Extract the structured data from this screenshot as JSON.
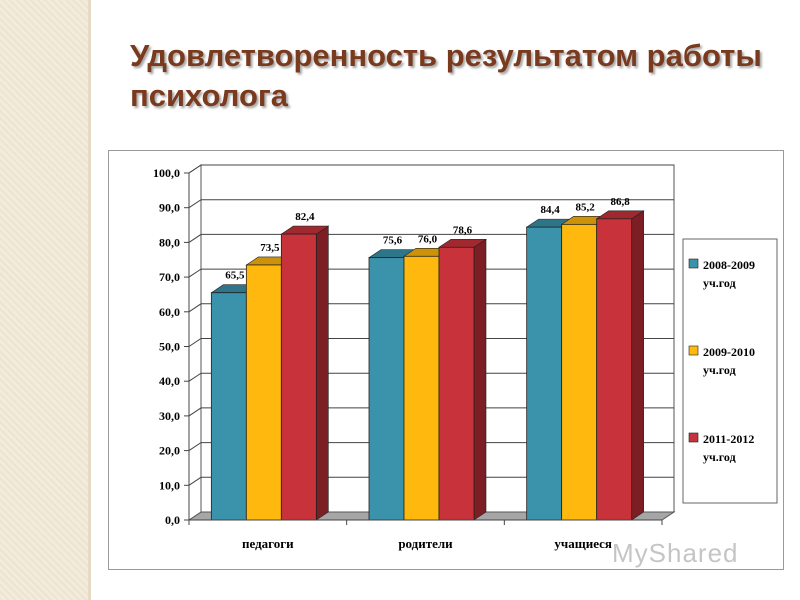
{
  "slide": {
    "title": "Удовлетворенность результатом работы психолога"
  },
  "chart_data": {
    "type": "bar",
    "categories": [
      "педагоги",
      "родители",
      "учащиеся"
    ],
    "series": [
      {
        "name": "2008-2009 уч.год",
        "name_lines": [
          "2008-2009",
          "уч.год"
        ],
        "values": [
          65.5,
          75.6,
          84.4
        ],
        "labels": [
          "65,5",
          "75,6",
          "84,4"
        ],
        "color": "#3a92ab"
      },
      {
        "name": "2009-2010 уч.год",
        "name_lines": [
          "2009-2010",
          "уч.год"
        ],
        "values": [
          73.5,
          76.0,
          85.2
        ],
        "labels": [
          "73,5",
          "76,0",
          "85,2"
        ],
        "color": "#ffb80d"
      },
      {
        "name": "2011-2012 уч.год",
        "name_lines": [
          "2011-2012",
          "уч.год"
        ],
        "values": [
          82.4,
          78.6,
          86.8
        ],
        "labels": [
          "82,4",
          "78,6",
          "86,8"
        ],
        "color": "#c8323a"
      }
    ],
    "yticks": [
      "0,0",
      "10,0",
      "20,0",
      "30,0",
      "40,0",
      "50,0",
      "60,0",
      "70,0",
      "80,0",
      "90,0",
      "100,0"
    ],
    "ylim": [
      0,
      100
    ],
    "grid": true,
    "legend": "right",
    "style": "3d-clustered-column"
  },
  "watermark": "MyShared"
}
